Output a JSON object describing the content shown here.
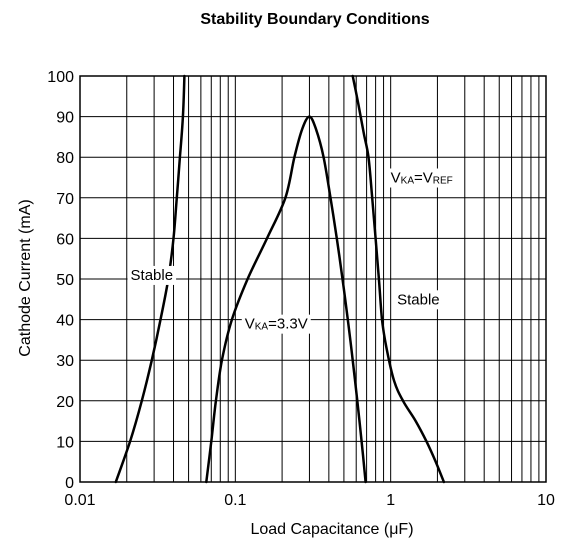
{
  "chart_data": {
    "type": "line",
    "title": "Stability Boundary Conditions",
    "xlabel": "Load Capacitance (μF)",
    "ylabel": "Cathode Current (mA)",
    "xscale": "log",
    "xlim": [
      0.01,
      10
    ],
    "ylim": [
      0,
      100
    ],
    "x_ticks": [
      {
        "value": 0.01,
        "label": "0.01"
      },
      {
        "value": 0.1,
        "label": "0.1"
      },
      {
        "value": 1,
        "label": "1"
      },
      {
        "value": 10,
        "label": "10"
      }
    ],
    "y_ticks": [
      {
        "value": 0,
        "label": "0"
      },
      {
        "value": 10,
        "label": "10"
      },
      {
        "value": 20,
        "label": "20"
      },
      {
        "value": 30,
        "label": "30"
      },
      {
        "value": 40,
        "label": "40"
      },
      {
        "value": 50,
        "label": "50"
      },
      {
        "value": 60,
        "label": "60"
      },
      {
        "value": 70,
        "label": "70"
      },
      {
        "value": 80,
        "label": "80"
      },
      {
        "value": 90,
        "label": "90"
      },
      {
        "value": 100,
        "label": "100"
      }
    ],
    "grid": true,
    "series": [
      {
        "points": [
          [
            0.017,
            0
          ],
          [
            0.021,
            10
          ],
          [
            0.025,
            20
          ],
          [
            0.029,
            30
          ],
          [
            0.033,
            40
          ],
          [
            0.037,
            50
          ],
          [
            0.04,
            60
          ],
          [
            0.042,
            70
          ],
          [
            0.044,
            80
          ],
          [
            0.046,
            90
          ],
          [
            0.047,
            100
          ]
        ]
      },
      {
        "points": [
          [
            0.065,
            0
          ],
          [
            0.07,
            10
          ],
          [
            0.075,
            20
          ],
          [
            0.082,
            30
          ],
          [
            0.095,
            40
          ],
          [
            0.12,
            50
          ],
          [
            0.16,
            60
          ],
          [
            0.21,
            70
          ],
          [
            0.24,
            80
          ],
          [
            0.27,
            87
          ],
          [
            0.3,
            90
          ],
          [
            0.33,
            87
          ],
          [
            0.37,
            80
          ],
          [
            0.41,
            70
          ],
          [
            0.45,
            60
          ],
          [
            0.49,
            50
          ],
          [
            0.53,
            40
          ],
          [
            0.57,
            30
          ],
          [
            0.61,
            20
          ],
          [
            0.65,
            10
          ],
          [
            0.69,
            0
          ]
        ]
      },
      {
        "points": [
          [
            0.57,
            100
          ],
          [
            0.62,
            93
          ],
          [
            0.67,
            86
          ],
          [
            0.72,
            80
          ],
          [
            0.76,
            70
          ],
          [
            0.8,
            60
          ],
          [
            0.84,
            50
          ],
          [
            0.88,
            40
          ],
          [
            0.94,
            33
          ],
          [
            1.05,
            25
          ],
          [
            1.2,
            20
          ],
          [
            1.45,
            15
          ],
          [
            1.7,
            10
          ],
          [
            1.95,
            5
          ],
          [
            2.2,
            0
          ]
        ]
      }
    ],
    "annotations": [
      {
        "text": "Stable",
        "x": 0.029,
        "y": 51,
        "align": "middle"
      },
      {
        "text": "Stable",
        "x": 1.1,
        "y": 45,
        "align": "start"
      },
      {
        "main": "V",
        "sub": "KA",
        "rest": "=3.3V",
        "x": 0.115,
        "y": 39
      },
      {
        "main": "V",
        "sub": "KA",
        "rest": "=V",
        "sub2": "REF",
        "x": 1.0,
        "y": 75
      }
    ]
  }
}
